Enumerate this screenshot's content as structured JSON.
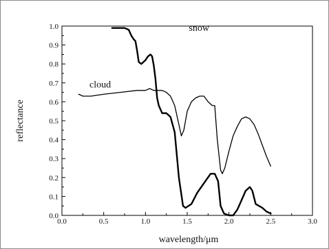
{
  "chart_data": {
    "type": "line",
    "title": "",
    "xlabel": "wavelength/μm",
    "ylabel": "reflectance",
    "xlim": [
      0.0,
      3.0
    ],
    "ylim": [
      0.0,
      1.0
    ],
    "xticks": [
      "0.0",
      "0.5",
      "1.0",
      "1.5",
      "2.0",
      "2.5",
      "3.0"
    ],
    "yticks": [
      "0.0",
      "0.1",
      "0.2",
      "0.3",
      "0.4",
      "0.5",
      "0.6",
      "0.7",
      "0.8",
      "0.9",
      "1.0"
    ],
    "grid": false,
    "legend": "none",
    "series": [
      {
        "name": "snow",
        "color": "#000000",
        "x": [
          0.6,
          0.75,
          0.8,
          0.83,
          0.86,
          0.88,
          0.9,
          0.92,
          0.95,
          1.0,
          1.03,
          1.06,
          1.08,
          1.1,
          1.12,
          1.14,
          1.16,
          1.2,
          1.25,
          1.3,
          1.35,
          1.4,
          1.45,
          1.48,
          1.55,
          1.62,
          1.7,
          1.78,
          1.83,
          1.87,
          1.9,
          1.94,
          2.0,
          2.05,
          2.1,
          2.15,
          2.2,
          2.25,
          2.28,
          2.32,
          2.4,
          2.45,
          2.5
        ],
        "y": [
          0.99,
          0.99,
          0.98,
          0.95,
          0.93,
          0.92,
          0.87,
          0.81,
          0.8,
          0.82,
          0.84,
          0.85,
          0.84,
          0.79,
          0.72,
          0.62,
          0.58,
          0.54,
          0.54,
          0.52,
          0.44,
          0.2,
          0.05,
          0.04,
          0.06,
          0.12,
          0.17,
          0.22,
          0.22,
          0.18,
          0.05,
          0.01,
          0.0,
          0.0,
          0.03,
          0.08,
          0.13,
          0.15,
          0.13,
          0.06,
          0.04,
          0.02,
          0.01
        ]
      },
      {
        "name": "cloud",
        "color": "#000000",
        "x": [
          0.2,
          0.25,
          0.35,
          0.5,
          0.7,
          0.9,
          1.0,
          1.05,
          1.1,
          1.15,
          1.2,
          1.25,
          1.3,
          1.35,
          1.4,
          1.43,
          1.46,
          1.5,
          1.55,
          1.6,
          1.65,
          1.7,
          1.75,
          1.8,
          1.83,
          1.86,
          1.9,
          1.92,
          1.95,
          2.0,
          2.05,
          2.1,
          2.15,
          2.2,
          2.25,
          2.3,
          2.35,
          2.4,
          2.45,
          2.5
        ],
        "y": [
          0.64,
          0.63,
          0.63,
          0.64,
          0.65,
          0.66,
          0.66,
          0.67,
          0.66,
          0.66,
          0.66,
          0.65,
          0.63,
          0.58,
          0.48,
          0.42,
          0.45,
          0.55,
          0.6,
          0.62,
          0.63,
          0.63,
          0.6,
          0.58,
          0.58,
          0.4,
          0.24,
          0.22,
          0.25,
          0.34,
          0.42,
          0.47,
          0.51,
          0.52,
          0.51,
          0.48,
          0.43,
          0.37,
          0.31,
          0.26
        ]
      }
    ],
    "annotations": [
      {
        "text": "snow",
        "x": 1.52,
        "y": 0.99
      },
      {
        "text": "cloud",
        "x": 0.33,
        "y": 0.69
      }
    ]
  }
}
